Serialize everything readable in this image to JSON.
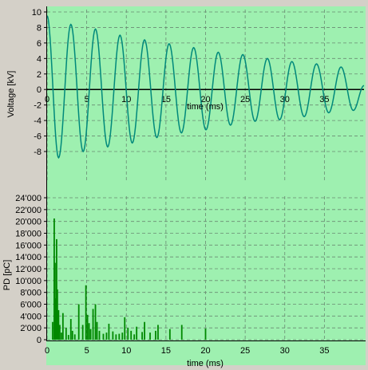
{
  "colors": {
    "window_bg": "#d4d0c8",
    "plot_bg": "#9ef0b0",
    "grid": "#6a8a72",
    "voltage_line": "#00897b",
    "pd_bars": "#008800",
    "axis": "#000000"
  },
  "chart_data": [
    {
      "type": "line",
      "xlabel": "time (ms)",
      "ylabel": "Voltage [kV]",
      "xlim": [
        0,
        40
      ],
      "ylim": [
        -8,
        10
      ],
      "plot_ylim": [
        -12,
        10
      ],
      "x_ticks": [
        0,
        5,
        10,
        15,
        20,
        25,
        30,
        35
      ],
      "y_ticks": [
        10,
        8,
        6,
        4,
        2,
        0,
        -2,
        -4,
        -6,
        -8
      ],
      "y_tick_labels": [
        "10",
        "8",
        "6",
        "4",
        "2",
        "0",
        "-2",
        "-4",
        "-6",
        "-8"
      ],
      "grid": true,
      "zero_line": true,
      "series": [
        {
          "description": "Damped AC oscillation, period about 3.1 ms",
          "x": [
            0,
            1.45,
            3.0,
            4.55,
            6.1,
            7.65,
            9.2,
            10.75,
            12.3,
            13.85,
            15.4,
            16.95,
            18.5,
            20.05,
            21.6,
            23.15,
            24.7,
            26.25,
            27.8,
            29.35,
            30.9,
            32.45,
            34.0,
            35.55,
            37.1,
            38.65,
            40.0
          ],
          "y": [
            9.5,
            -8.8,
            8.4,
            -8.0,
            7.8,
            -7.4,
            7.0,
            -6.9,
            6.4,
            -6.2,
            5.9,
            -5.6,
            5.4,
            -5.2,
            4.8,
            -4.6,
            4.5,
            -4.1,
            4.0,
            -3.9,
            3.6,
            -3.5,
            3.3,
            -3.0,
            2.9,
            -2.7,
            0.5
          ]
        }
      ]
    },
    {
      "type": "bar",
      "xlabel": "time (ms)",
      "ylabel": "PD [pC]",
      "xlim": [
        0,
        40
      ],
      "ylim": [
        0,
        24000
      ],
      "x_ticks": [
        0,
        5,
        10,
        15,
        20,
        25,
        30,
        35
      ],
      "y_ticks": [
        0,
        2000,
        4000,
        6000,
        8000,
        10000,
        12000,
        14000,
        16000,
        18000,
        20000,
        22000,
        24000
      ],
      "y_tick_labels": [
        "0",
        "2'000",
        "4'000",
        "6'000",
        "8'000",
        "10'000",
        "12'000",
        "14'000",
        "16'000",
        "18'000",
        "20'000",
        "22'000",
        "24'000"
      ],
      "grid": true,
      "x": [
        0.7,
        0.9,
        1.0,
        1.1,
        1.2,
        1.3,
        1.45,
        1.6,
        1.8,
        2.0,
        2.4,
        2.7,
        3.0,
        3.2,
        3.5,
        4.0,
        4.5,
        4.9,
        5.1,
        5.3,
        5.5,
        5.8,
        6.1,
        6.3,
        6.6,
        7.1,
        7.5,
        7.8,
        8.3,
        8.7,
        9.1,
        9.5,
        9.8,
        10.2,
        10.6,
        11.0,
        11.3,
        12.0,
        12.3,
        13.0,
        13.7,
        14.0,
        15.5,
        17.0,
        20.0
      ],
      "values": [
        3000,
        20500,
        13000,
        7000,
        17000,
        8500,
        5000,
        2500,
        1200,
        4500,
        2000,
        800,
        3500,
        1500,
        900,
        6000,
        2500,
        9200,
        4200,
        2800,
        1800,
        5200,
        6000,
        3000,
        1500,
        1000,
        1200,
        2700,
        1400,
        900,
        1000,
        1200,
        3800,
        2000,
        1500,
        900,
        2200,
        1300,
        3000,
        1200,
        1500,
        2500,
        1800,
        2500,
        1900
      ]
    }
  ]
}
